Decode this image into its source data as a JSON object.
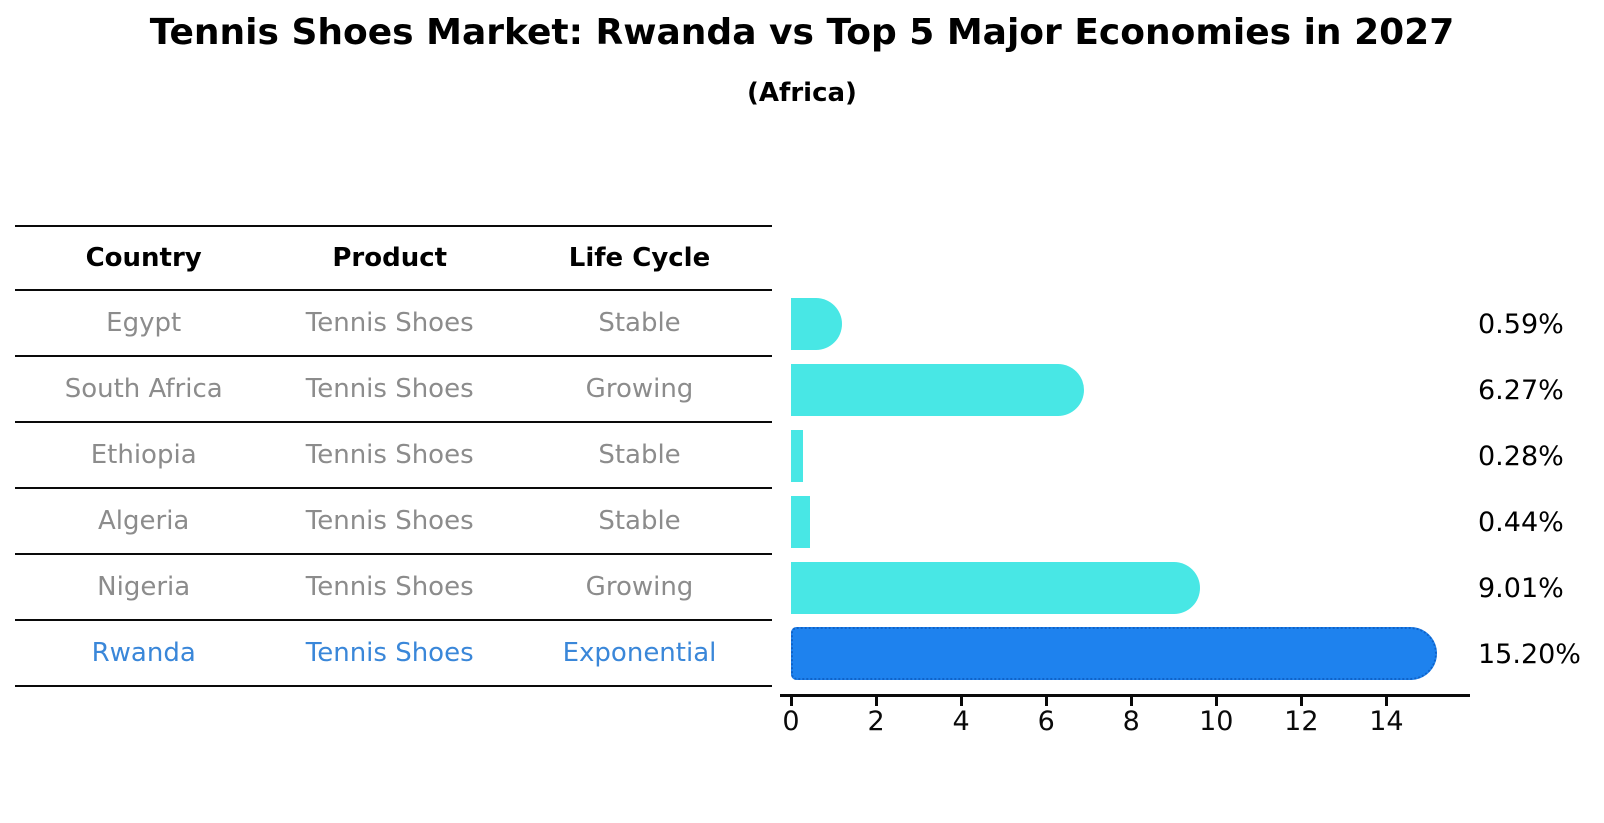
{
  "title": "Tennis Shoes Market: Rwanda vs Top 5 Major Economies in 2027",
  "subtitle": "(Africa)",
  "table": {
    "headers": [
      "Country",
      "Product",
      "Life Cycle"
    ],
    "rows": [
      {
        "country": "Egypt",
        "product": "Tennis Shoes",
        "life_cycle": "Stable",
        "highlight": false
      },
      {
        "country": "South Africa",
        "product": "Tennis Shoes",
        "life_cycle": "Growing",
        "highlight": false
      },
      {
        "country": "Ethiopia",
        "product": "Tennis Shoes",
        "life_cycle": "Stable",
        "highlight": false
      },
      {
        "country": "Algeria",
        "product": "Tennis Shoes",
        "life_cycle": "Stable",
        "highlight": false
      },
      {
        "country": "Nigeria",
        "product": "Tennis Shoes",
        "life_cycle": "Growing",
        "highlight": false
      },
      {
        "country": "Rwanda",
        "product": "Tennis Shoes",
        "life_cycle": "Exponential",
        "highlight": true
      }
    ]
  },
  "chart_data": {
    "type": "bar",
    "orientation": "horizontal",
    "title": "Tennis Shoes Market: Rwanda vs Top 5 Major Economies in 2027 (Africa)",
    "categories": [
      "Egypt",
      "South Africa",
      "Ethiopia",
      "Algeria",
      "Nigeria",
      "Rwanda"
    ],
    "values": [
      0.59,
      6.27,
      0.28,
      0.44,
      9.01,
      15.2
    ],
    "value_labels": [
      "0.59%",
      "6.27%",
      "0.28%",
      "0.44%",
      "9.01%",
      "15.20%"
    ],
    "x_ticks": [
      0,
      2,
      4,
      6,
      8,
      10,
      12,
      14
    ],
    "xlim": [
      0,
      15.9
    ],
    "xlabel": "",
    "ylabel": "",
    "grid": false,
    "legend": false,
    "highlight_index": 5,
    "bar_color": "#48E7E5",
    "highlight_bar_color": "#1E82EE",
    "highlight_edge_color": "#0f62c8",
    "highlight_text_color": "#3a87d9",
    "body_text_color": "#8c8c8c"
  }
}
